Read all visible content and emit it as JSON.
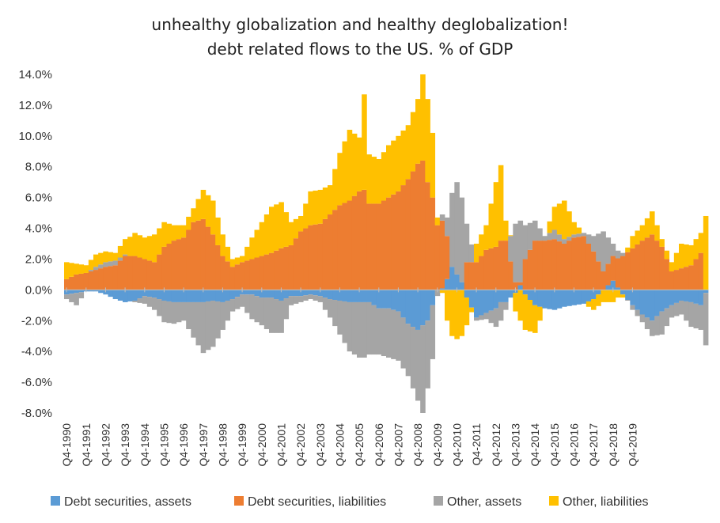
{
  "chart_data": {
    "type": "bar",
    "stacked": true,
    "title": "unhealthy globalization and healthy deglobalization!",
    "subtitle": "debt related flows to the US. % of GDP",
    "xlabel": "",
    "ylabel": "",
    "ylim": [
      -8,
      14
    ],
    "yticks": [
      14,
      12,
      10,
      8,
      6,
      4,
      2,
      0,
      -2,
      -4,
      -6,
      -8
    ],
    "ytick_labels": [
      "14.0%",
      "12.0%",
      "10.0%",
      "8.0%",
      "6.0%",
      "4.0%",
      "2.0%",
      "0.0%",
      "-2.0%",
      "-4.0%",
      "-6.0%",
      "-8.0%"
    ],
    "xtick_labels": [
      "Q4-1990",
      "Q4-1991",
      "Q4-1992",
      "Q4-1993",
      "Q4-1994",
      "Q4-1995",
      "Q4-1996",
      "Q4-1997",
      "Q4-1998",
      "Q4-1999",
      "Q4-2000",
      "Q4-2001",
      "Q4-2002",
      "Q4-2003",
      "Q4-2004",
      "Q4-2005",
      "Q4-2006",
      "Q4-2007",
      "Q4-2008",
      "Q4-2009",
      "Q4-2010",
      "Q4-2011",
      "Q4-2012",
      "Q4-2013",
      "Q4-2014",
      "Q4-2015",
      "Q4-2016",
      "Q4-2017",
      "Q4-2018",
      "Q4-2019"
    ],
    "anchors": [
      {
        "t": 0,
        "dsa": -0.3,
        "dsl": 0.7,
        "oa": -0.3,
        "ol": 1.1
      },
      {
        "t": 2,
        "dsa": -0.2,
        "dsl": 1.0,
        "oa": -0.8,
        "ol": 0.7
      },
      {
        "t": 4,
        "dsa": -0.1,
        "dsl": 1.1,
        "oa": 0.0,
        "ol": 0.5
      },
      {
        "t": 6,
        "dsa": -0.1,
        "dsl": 1.3,
        "oa": 0.2,
        "ol": 0.8
      },
      {
        "t": 8,
        "dsa": -0.3,
        "dsl": 1.5,
        "oa": 0.3,
        "ol": 0.7
      },
      {
        "t": 10,
        "dsa": -0.6,
        "dsl": 1.6,
        "oa": 0.3,
        "ol": 0.5
      },
      {
        "t": 12,
        "dsa": -0.8,
        "dsl": 2.2,
        "oa": 0.1,
        "ol": 1.0
      },
      {
        "t": 14,
        "dsa": -0.7,
        "dsl": 2.2,
        "oa": -0.1,
        "ol": 1.5
      },
      {
        "t": 16,
        "dsa": -0.4,
        "dsl": 2.0,
        "oa": -0.5,
        "ol": 1.4
      },
      {
        "t": 18,
        "dsa": -0.5,
        "dsl": 1.8,
        "oa": -0.8,
        "ol": 1.8
      },
      {
        "t": 20,
        "dsa": -0.7,
        "dsl": 2.8,
        "oa": -1.4,
        "ol": 1.6
      },
      {
        "t": 22,
        "dsa": -0.8,
        "dsl": 3.2,
        "oa": -1.4,
        "ol": 1.0
      },
      {
        "t": 24,
        "dsa": -0.8,
        "dsl": 3.4,
        "oa": -1.2,
        "ol": 0.8
      },
      {
        "t": 26,
        "dsa": -0.8,
        "dsl": 4.4,
        "oa": -2.3,
        "ol": 0.9
      },
      {
        "t": 28,
        "dsa": -0.8,
        "dsl": 4.6,
        "oa": -3.3,
        "ol": 1.9
      },
      {
        "t": 30,
        "dsa": -0.7,
        "dsl": 3.6,
        "oa": -3.0,
        "ol": 2.2
      },
      {
        "t": 32,
        "dsa": -0.8,
        "dsl": 2.2,
        "oa": -1.8,
        "ol": 1.4
      },
      {
        "t": 34,
        "dsa": -0.6,
        "dsl": 1.5,
        "oa": -0.8,
        "ol": 0.5
      },
      {
        "t": 36,
        "dsa": -0.3,
        "dsl": 1.8,
        "oa": -0.8,
        "ol": 0.4
      },
      {
        "t": 38,
        "dsa": -0.3,
        "dsl": 2.0,
        "oa": -1.6,
        "ol": 1.4
      },
      {
        "t": 40,
        "dsa": -0.5,
        "dsl": 2.2,
        "oa": -1.8,
        "ol": 2.2
      },
      {
        "t": 42,
        "dsa": -0.5,
        "dsl": 2.4,
        "oa": -2.3,
        "ol": 3.0
      },
      {
        "t": 44,
        "dsa": -0.7,
        "dsl": 2.7,
        "oa": -2.1,
        "ol": 3.0
      },
      {
        "t": 46,
        "dsa": -0.4,
        "dsl": 2.9,
        "oa": -0.6,
        "ol": 1.5
      },
      {
        "t": 48,
        "dsa": -0.4,
        "dsl": 3.8,
        "oa": -0.4,
        "ol": 1.0
      },
      {
        "t": 50,
        "dsa": -0.3,
        "dsl": 4.2,
        "oa": -0.3,
        "ol": 2.2
      },
      {
        "t": 52,
        "dsa": -0.4,
        "dsl": 4.3,
        "oa": -0.4,
        "ol": 2.2
      },
      {
        "t": 54,
        "dsa": -0.6,
        "dsl": 4.9,
        "oa": -1.2,
        "ol": 1.9
      },
      {
        "t": 56,
        "dsa": -0.7,
        "dsl": 5.5,
        "oa": -2.2,
        "ol": 3.4
      },
      {
        "t": 58,
        "dsa": -0.8,
        "dsl": 5.8,
        "oa": -3.2,
        "ol": 4.6
      },
      {
        "t": 60,
        "dsa": -0.8,
        "dsl": 6.4,
        "oa": -3.6,
        "ol": 3.5
      },
      {
        "t": 61,
        "dsa": -0.8,
        "dsl": 6.5,
        "oa": -3.6,
        "ol": 6.2
      },
      {
        "t": 62,
        "dsa": -0.8,
        "dsl": 5.6,
        "oa": -3.4,
        "ol": 3.2
      },
      {
        "t": 64,
        "dsa": -1.2,
        "dsl": 5.6,
        "oa": -3.0,
        "ol": 2.9
      },
      {
        "t": 66,
        "dsa": -1.2,
        "dsl": 6.0,
        "oa": -3.2,
        "ol": 3.4
      },
      {
        "t": 68,
        "dsa": -1.4,
        "dsl": 6.4,
        "oa": -3.2,
        "ol": 3.6
      },
      {
        "t": 70,
        "dsa": -2.2,
        "dsl": 7.2,
        "oa": -3.4,
        "ol": 3.5
      },
      {
        "t": 72,
        "dsa": -2.6,
        "dsl": 8.2,
        "oa": -4.6,
        "ol": 4.2
      },
      {
        "t": 73,
        "dsa": -2.3,
        "dsl": 8.4,
        "oa": -5.7,
        "ol": 5.6
      },
      {
        "t": 74,
        "dsa": -2.0,
        "dsl": 7.0,
        "oa": -4.4,
        "ol": 5.4
      },
      {
        "t": 75,
        "dsa": -1.0,
        "dsl": 6.0,
        "oa": -3.5,
        "ol": 4.2
      },
      {
        "t": 76,
        "dsa": 0.0,
        "dsl": 4.2,
        "oa": -0.4,
        "ol": 0.5
      },
      {
        "t": 77,
        "dsa": 0.1,
        "dsl": 4.4,
        "oa": 0.4,
        "ol": -0.2
      },
      {
        "t": 78,
        "dsa": 0.7,
        "dsl": 2.8,
        "oa": 1.2,
        "ol": -2.0
      },
      {
        "t": 79,
        "dsa": 1.5,
        "dsl": 0.0,
        "oa": 4.8,
        "ol": -3.0
      },
      {
        "t": 80,
        "dsa": 1.0,
        "dsl": 0.0,
        "oa": 6.0,
        "ol": -3.2
      },
      {
        "t": 81,
        "dsa": 0.5,
        "dsl": 0.0,
        "oa": 5.5,
        "ol": -3.0
      },
      {
        "t": 82,
        "dsa": -0.5,
        "dsl": 1.8,
        "oa": 2.5,
        "ol": -1.8
      },
      {
        "t": 84,
        "dsa": -1.8,
        "dsl": 1.8,
        "oa": -0.2,
        "ol": 1.2
      },
      {
        "t": 86,
        "dsa": -1.5,
        "dsl": 2.6,
        "oa": -0.4,
        "ol": 1.6
      },
      {
        "t": 88,
        "dsa": -1.2,
        "dsl": 2.8,
        "oa": -1.2,
        "ol": 4.2
      },
      {
        "t": 89,
        "dsa": -0.8,
        "dsl": 3.2,
        "oa": -1.2,
        "ol": 4.9
      },
      {
        "t": 90,
        "dsa": -0.8,
        "dsl": 3.2,
        "oa": -0.5,
        "ol": 1.3
      },
      {
        "t": 92,
        "dsa": -0.2,
        "dsl": 0.5,
        "oa": 3.8,
        "ol": -1.2
      },
      {
        "t": 93,
        "dsa": 0.3,
        "dsl": 0.2,
        "oa": 4.0,
        "ol": -2.0
      },
      {
        "t": 94,
        "dsa": -0.3,
        "dsl": 2.0,
        "oa": 2.2,
        "ol": -2.3
      },
      {
        "t": 96,
        "dsa": -1.0,
        "dsl": 3.2,
        "oa": 1.3,
        "ol": -1.8
      },
      {
        "t": 98,
        "dsa": -1.2,
        "dsl": 3.2,
        "oa": 0.3,
        "ol": 0.0
      },
      {
        "t": 100,
        "dsa": -1.3,
        "dsl": 3.3,
        "oa": 0.6,
        "ol": 1.5
      },
      {
        "t": 102,
        "dsa": -1.1,
        "dsl": 3.0,
        "oa": 0.3,
        "ol": 2.5
      },
      {
        "t": 104,
        "dsa": -1.0,
        "dsl": 3.4,
        "oa": 0.2,
        "ol": 0.8
      },
      {
        "t": 106,
        "dsa": -0.9,
        "dsl": 3.5,
        "oa": 0.2,
        "ol": 0.0
      },
      {
        "t": 108,
        "dsa": -0.6,
        "dsl": 2.5,
        "oa": 1.0,
        "ol": -0.7
      },
      {
        "t": 110,
        "dsa": 0.0,
        "dsl": 1.2,
        "oa": 2.6,
        "ol": -0.8
      },
      {
        "t": 112,
        "dsa": 0.6,
        "dsl": 1.6,
        "oa": 0.8,
        "ol": -0.8
      },
      {
        "t": 114,
        "dsa": -0.3,
        "dsl": 2.2,
        "oa": 0.2,
        "ol": -0.2
      },
      {
        "t": 116,
        "dsa": -1.0,
        "dsl": 2.7,
        "oa": -0.3,
        "ol": 0.8
      },
      {
        "t": 118,
        "dsa": -1.6,
        "dsl": 3.2,
        "oa": -0.5,
        "ol": 1.0
      },
      {
        "t": 120,
        "dsa": -2.0,
        "dsl": 3.6,
        "oa": -1.0,
        "ol": 1.5
      },
      {
        "t": 122,
        "dsa": -1.4,
        "dsl": 2.8,
        "oa": -1.5,
        "ol": 0.5
      },
      {
        "t": 124,
        "dsa": -1.0,
        "dsl": 1.2,
        "oa": -0.8,
        "ol": 0.6
      },
      {
        "t": 126,
        "dsa": -0.7,
        "dsl": 1.4,
        "oa": -0.9,
        "ol": 1.6
      },
      {
        "t": 128,
        "dsa": -0.8,
        "dsl": 1.6,
        "oa": -1.6,
        "ol": 1.3
      },
      {
        "t": 130,
        "dsa": -1.0,
        "dsl": 2.4,
        "oa": -1.6,
        "ol": 1.3
      },
      {
        "t": 131,
        "dsa": -0.2,
        "dsl": 0.0,
        "oa": -3.4,
        "ol": 4.8
      }
    ],
    "series": [
      {
        "name": "Debt securities, assets",
        "key": "dsa",
        "color": "#5B9BD5"
      },
      {
        "name": "Debt securities, liabilities",
        "key": "dsl",
        "color": "#ED7D31"
      },
      {
        "name": "Other, assets",
        "key": "oa",
        "color": "#A5A5A5"
      },
      {
        "name": "Other, liabilities",
        "key": "ol",
        "color": "#FFC000"
      }
    ],
    "legend": "bottom"
  }
}
